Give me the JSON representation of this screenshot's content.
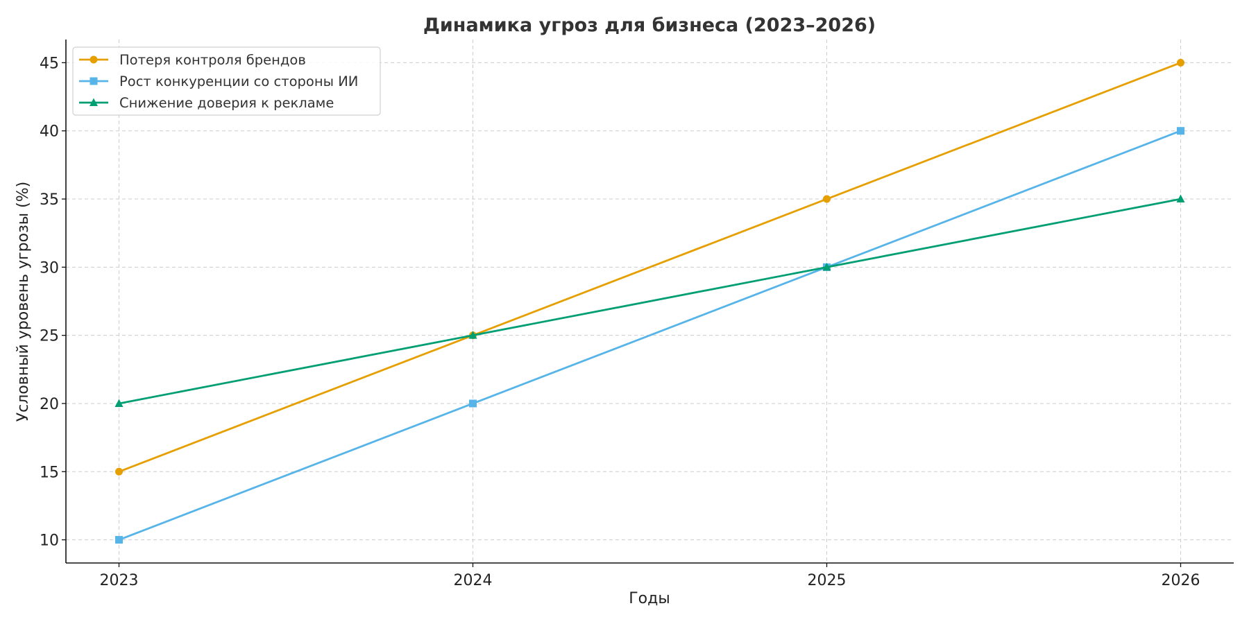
{
  "chart_data": {
    "type": "line",
    "title": "Динамика угроз для бизнеса (2023–2026)",
    "xlabel": "Годы",
    "ylabel": "Условный уровень угрозы (%)",
    "x": [
      2023,
      2024,
      2025,
      2026
    ],
    "x_tick_labels": [
      "2023",
      "2024",
      "2025",
      "2026"
    ],
    "y_ticks": [
      10,
      15,
      20,
      25,
      30,
      35,
      40,
      45
    ],
    "y_tick_labels": [
      "10",
      "15",
      "20",
      "25",
      "30",
      "35",
      "40",
      "45"
    ],
    "xlim": [
      2022.85,
      2026.15
    ],
    "ylim": [
      8.3,
      46.7
    ],
    "grid": true,
    "legend_position": "top-left",
    "series": [
      {
        "name": "Потеря контроля брендов",
        "values": [
          15,
          25,
          35,
          45
        ],
        "color": "#E69F00",
        "marker": "circle"
      },
      {
        "name": "Рост конкуренции со стороны ИИ",
        "values": [
          10,
          20,
          30,
          40
        ],
        "color": "#56B4E9",
        "marker": "square"
      },
      {
        "name": "Снижение доверия к рекламе",
        "values": [
          20,
          25,
          30,
          35
        ],
        "color": "#009E73",
        "marker": "triangle"
      }
    ]
  }
}
